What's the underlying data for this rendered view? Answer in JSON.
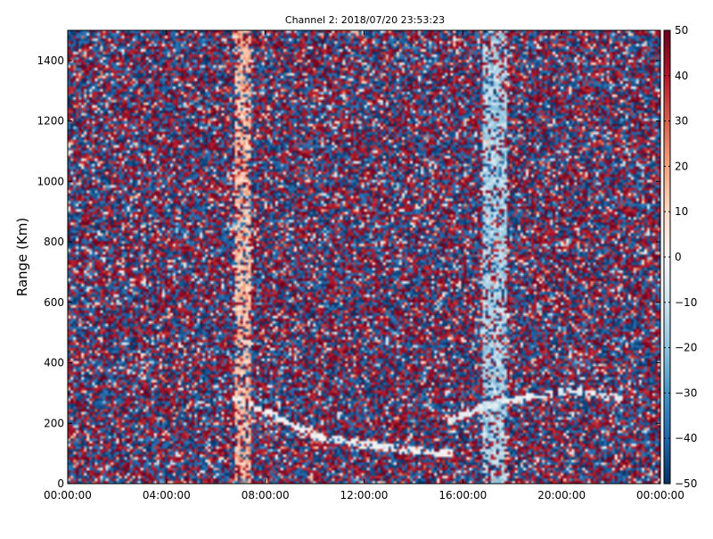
{
  "chart_data": {
    "type": "heatmap",
    "title": "Channel 2: 2018/07/20 23:53:23",
    "ylabel": "Range (Km)",
    "xlabel": "",
    "x_ticks": [
      "00:00:00",
      "04:00:00",
      "08:00:00",
      "12:00:00",
      "16:00:00",
      "20:00:00",
      "00:00:00"
    ],
    "x_range_hours": [
      0,
      24
    ],
    "y_ticks": [
      0,
      200,
      400,
      600,
      800,
      1000,
      1200,
      1400
    ],
    "y_range": [
      0,
      1500
    ],
    "colorbar": {
      "range": [
        -50,
        50
      ],
      "ticks": [
        -50,
        -40,
        -30,
        -20,
        -10,
        0,
        10,
        20,
        30,
        40,
        50
      ],
      "colormap": "RdBu_r",
      "stops": [
        "#053061",
        "#2166ac",
        "#4393c3",
        "#92c5de",
        "#d1e5f0",
        "#f7f7f7",
        "#fddbc7",
        "#f4a582",
        "#d6604d",
        "#b2182b",
        "#67001f"
      ]
    },
    "features": [
      {
        "description": "band",
        "x_hours": [
          6.8,
          7.4
        ],
        "y": [
          0,
          1500
        ],
        "value": 15
      },
      {
        "description": "band",
        "x_hours": [
          16.8,
          17.8
        ],
        "y": [
          0,
          1500
        ],
        "value": -15
      },
      {
        "description": "trace",
        "points": [
          [
            6.8,
            280
          ],
          [
            8.0,
            240
          ],
          [
            10.0,
            160
          ],
          [
            12.0,
            130
          ],
          [
            14.0,
            110
          ],
          [
            15.5,
            100
          ]
        ],
        "value": 0
      },
      {
        "description": "trace",
        "points": [
          [
            15.5,
            210
          ],
          [
            17.0,
            260
          ],
          [
            19.0,
            290
          ],
          [
            20.5,
            310
          ],
          [
            21.5,
            290
          ],
          [
            22.3,
            280
          ]
        ],
        "value": -5
      }
    ]
  }
}
